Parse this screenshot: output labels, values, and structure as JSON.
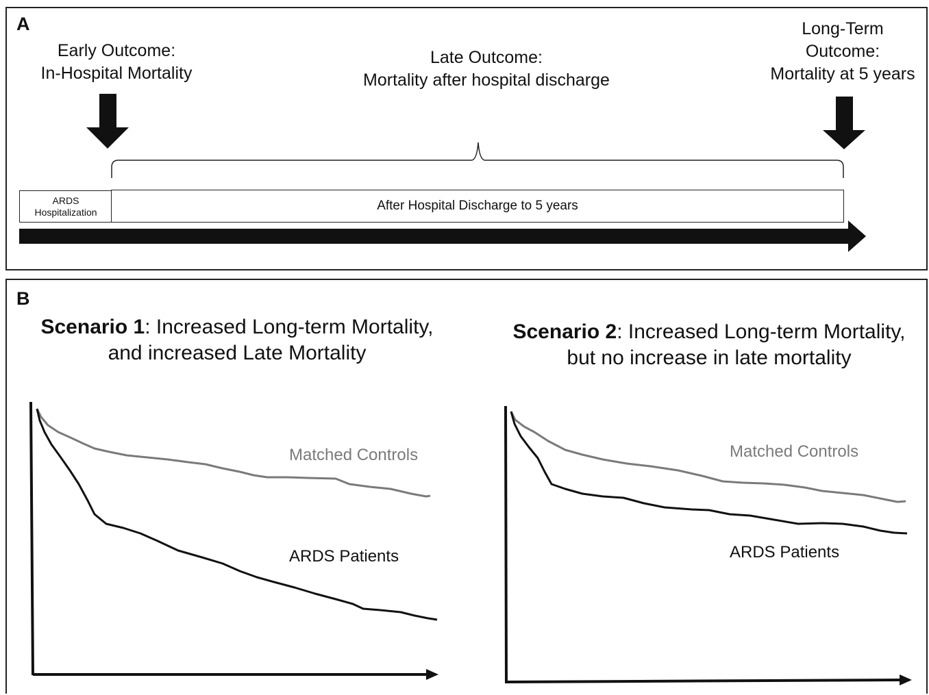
{
  "panel_a": {
    "label": "A",
    "early_outcome": [
      "Early Outcome:",
      "In-Hospital Mortality"
    ],
    "late_outcome": [
      "Late Outcome:",
      "Mortality after hospital discharge"
    ],
    "long_term_outcome": [
      "Long-Term",
      "Outcome:",
      "Mortality at 5 years"
    ],
    "hospitalization_box": [
      "ARDS",
      "Hospitalization"
    ],
    "discharge_box": "After Hospital Discharge to 5 years"
  },
  "panel_b": {
    "label": "B",
    "scenario1": {
      "title_bold": "Scenario 1",
      "title_rest": ": Increased Long-term Mortality,",
      "title_line2": "and increased Late Mortality",
      "controls_label": "Matched Controls",
      "patients_label": "ARDS Patients"
    },
    "scenario2": {
      "title_bold": "Scenario 2",
      "title_rest": ": Increased Long-term Mortality,",
      "title_line2": "but no increase in late mortality",
      "controls_label": "Matched Controls",
      "patients_label": "ARDS Patients"
    }
  },
  "colors": {
    "controls": "#7a7a7a",
    "patients": "#111111",
    "border": "#222222"
  }
}
